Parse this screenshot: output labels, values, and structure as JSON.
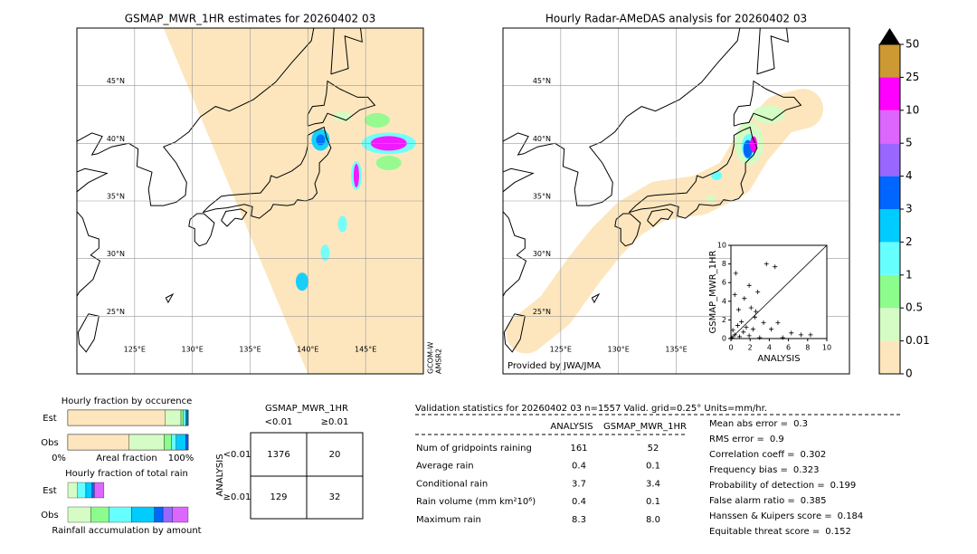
{
  "left_map": {
    "title": "GSMAP_MWR_1HR estimates for 20260402 03",
    "lonlim": [
      120,
      150
    ],
    "latlim": [
      20,
      50
    ],
    "lat_ticks": [
      {
        "value": 25,
        "label": "25°N"
      },
      {
        "value": 30,
        "label": "30°N"
      },
      {
        "value": 35,
        "label": "35°N"
      },
      {
        "value": 40,
        "label": "40°N"
      },
      {
        "value": 45,
        "label": "45°N"
      }
    ],
    "lon_ticks": [
      {
        "value": 125,
        "label": "125°E"
      },
      {
        "value": 130,
        "label": "130°E"
      },
      {
        "value": 135,
        "label": "135°E"
      },
      {
        "value": 140,
        "label": "140°E"
      },
      {
        "value": 145,
        "label": "145°E"
      }
    ],
    "satellite": [
      "GCOM-W",
      "AMSR2"
    ]
  },
  "right_map": {
    "title": "Hourly Radar-AMeDAS analysis for 20260402 03",
    "lonlim": [
      120,
      150
    ],
    "latlim": [
      20,
      50
    ],
    "lat_ticks": [
      {
        "value": 25,
        "label": "25°N"
      },
      {
        "value": 30,
        "label": "30°N"
      },
      {
        "value": 35,
        "label": "35°N"
      },
      {
        "value": 40,
        "label": "40°N"
      },
      {
        "value": 45,
        "label": "45°N"
      }
    ],
    "lon_ticks": [
      {
        "value": 125,
        "label": "125°E"
      },
      {
        "value": 130,
        "label": "130°E"
      },
      {
        "value": 135,
        "label": "135°E"
      }
    ],
    "credit": "Provided by JWA/JMA"
  },
  "colorbar": {
    "levels": [
      0,
      0.01,
      0.5,
      1,
      2,
      3,
      4,
      5,
      10,
      25,
      50
    ],
    "colors": [
      "#fde6bd",
      "#d4fcc4",
      "#8cfc8c",
      "#66ffff",
      "#00ccff",
      "#0066ff",
      "#9966ff",
      "#dd66ff",
      "#ff00ff",
      "#cc9933"
    ],
    "over_color": "#000000"
  },
  "scatter": {
    "type": "scatter",
    "xlabel": "ANALYSIS",
    "ylabel": "GSMAP_MWR_1HR",
    "xlim": [
      0,
      10
    ],
    "ylim": [
      0,
      10
    ],
    "xticks": [
      0,
      2,
      4,
      6,
      8,
      10
    ],
    "yticks": [
      0,
      2,
      4,
      6,
      8,
      10
    ],
    "x": [
      3.7,
      4.6,
      0.5,
      1.9,
      0.4,
      2.8,
      1.4,
      0.8,
      2.1,
      2.5,
      3.4,
      4.9,
      4.2,
      6.3,
      7.3,
      8.3,
      1.1,
      0.7,
      1.6,
      0.2,
      0.4,
      0.9,
      1.9,
      3.0,
      5.4,
      0.1,
      2.3,
      1.3,
      2.6
    ],
    "y": [
      8.0,
      7.7,
      7.0,
      5.7,
      4.7,
      5.0,
      4.3,
      3.1,
      3.3,
      2.3,
      1.7,
      1.7,
      1.0,
      0.6,
      0.4,
      0.4,
      1.8,
      1.4,
      1.2,
      0.9,
      0.4,
      0.2,
      0.3,
      0.1,
      0.1,
      0.1,
      1.0,
      0.7,
      2.9
    ]
  },
  "occurrence": {
    "type": "bar",
    "title": "Hourly fraction by occurence",
    "categories": [
      "Est",
      "Obs"
    ],
    "xlabel": "Areal fraction",
    "xlim": [
      0,
      100
    ],
    "xticks": [
      {
        "value": 0,
        "label": "0%"
      },
      {
        "value": 100,
        "label": "100%"
      }
    ],
    "series": [
      {
        "color": "#fde6bd",
        "values": [
          81,
          51
        ]
      },
      {
        "color": "#d4fcc4",
        "values": [
          13,
          29
        ]
      },
      {
        "color": "#8cfc8c",
        "values": [
          2,
          6
        ]
      },
      {
        "color": "#66ffff",
        "values": [
          2,
          4
        ]
      },
      {
        "color": "#00ccff",
        "values": [
          1,
          8
        ]
      },
      {
        "color": "#0066ff",
        "values": [
          1,
          2
        ]
      }
    ]
  },
  "rain_fraction": {
    "type": "bar",
    "title": "Hourly fraction of total rain",
    "categories": [
      "Est",
      "Obs"
    ],
    "xlabel": "Rainfall accumulation by amount",
    "xlim": [
      0,
      100
    ],
    "series": [
      {
        "color": "#d4fcc4",
        "values": [
          8,
          19
        ]
      },
      {
        "color": "#8cfc8c",
        "values": [
          0,
          15
        ]
      },
      {
        "color": "#66ffff",
        "values": [
          7,
          19
        ]
      },
      {
        "color": "#00ccff",
        "values": [
          5,
          19
        ]
      },
      {
        "color": "#0066ff",
        "values": [
          2,
          7
        ]
      },
      {
        "color": "#9966ff",
        "values": [
          0,
          8
        ]
      },
      {
        "color": "#dd66ff",
        "values": [
          8,
          13
        ]
      }
    ]
  },
  "contingency": {
    "title": "GSMAP_MWR_1HR",
    "col_labels": [
      "<0.01",
      "≥0.01"
    ],
    "row_title": "ANALYSIS",
    "row_labels": [
      "<0.01",
      "≥0.01"
    ],
    "cells": [
      [
        1376,
        20
      ],
      [
        129,
        32
      ]
    ]
  },
  "validation": {
    "header": "Validation statistics for 20260402 03  n=1557 Valid. grid=0.25° Units=mm/hr.",
    "columns": [
      "ANALYSIS",
      "GSMAP_MWR_1HR"
    ],
    "rows": [
      {
        "label": "Num of gridpoints raining",
        "values": [
          "161",
          "52"
        ]
      },
      {
        "label": "Average rain",
        "values": [
          "0.4",
          "0.1"
        ]
      },
      {
        "label": "Conditional rain",
        "values": [
          "3.7",
          "3.4"
        ]
      },
      {
        "label": "Rain volume (mm km²10⁶)",
        "values": [
          "0.4",
          "0.1"
        ]
      },
      {
        "label": "Maximum rain",
        "values": [
          "8.3",
          "8.0"
        ]
      }
    ],
    "scores": [
      {
        "label": "Mean abs error =",
        "value": "0.3"
      },
      {
        "label": "RMS error =",
        "value": "0.9"
      },
      {
        "label": "Correlation coeff =",
        "value": "0.302"
      },
      {
        "label": "Frequency bias =",
        "value": "0.323"
      },
      {
        "label": "Probability of detection =",
        "value": "0.199"
      },
      {
        "label": "False alarm ratio =",
        "value": "0.385"
      },
      {
        "label": "Hanssen & Kuipers score =",
        "value": "0.184"
      },
      {
        "label": "Equitable threat score =",
        "value": "0.152"
      }
    ]
  }
}
